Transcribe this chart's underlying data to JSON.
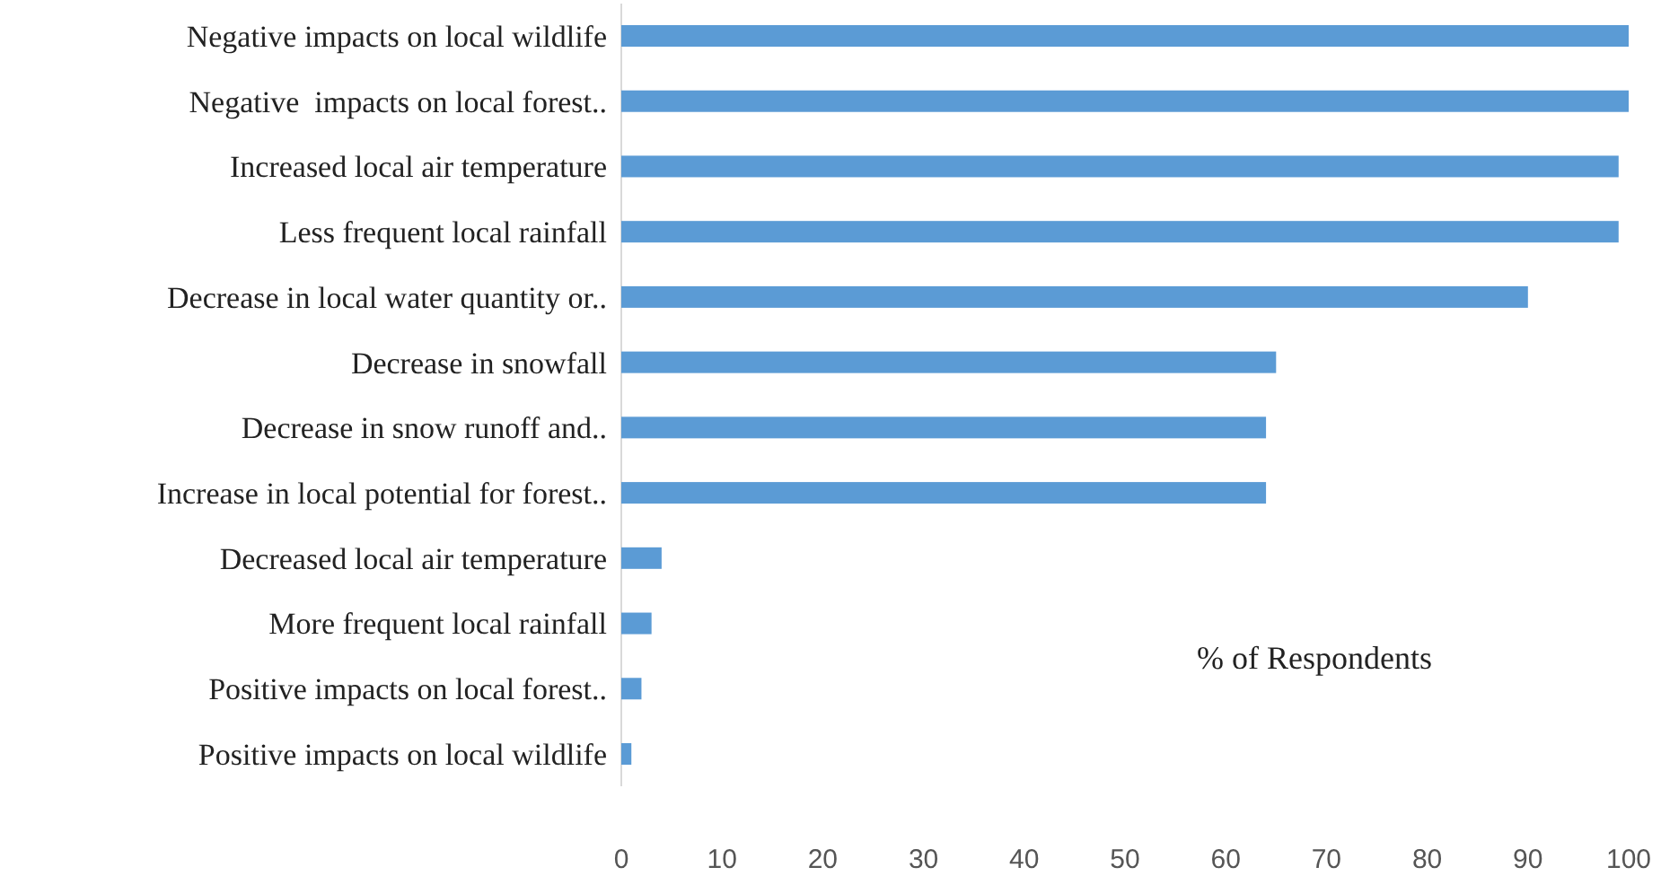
{
  "chart_data": {
    "type": "bar",
    "orientation": "horizontal",
    "xlabel": "% of Respondents",
    "categories": [
      "Negative impacts on local wildlife",
      "Negative  impacts on local forest..",
      "Increased local air temperature",
      "Less frequent local rainfall",
      "Decrease in local water quantity or..",
      "Decrease in snowfall",
      "Decrease in snow runoff and..",
      "Increase in local potential for forest..",
      "Decreased local air temperature",
      "More frequent local rainfall",
      "Positive impacts on local forest..",
      "Positive impacts on local wildlife"
    ],
    "values": [
      100,
      100,
      99,
      99,
      90,
      65,
      64,
      64,
      4,
      3,
      2,
      1
    ],
    "color": "#5b9bd5",
    "xlim": [
      0,
      100
    ],
    "xticks": [
      0,
      10,
      20,
      30,
      40,
      50,
      60,
      70,
      80,
      90,
      100
    ],
    "grid": false
  }
}
